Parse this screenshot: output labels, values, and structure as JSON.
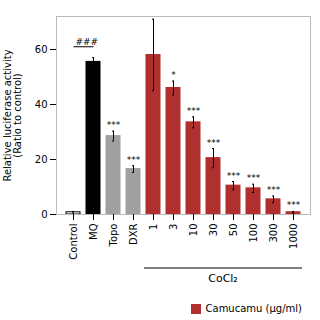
{
  "chart_data": {
    "type": "bar",
    "categories": [
      "Control",
      "MQ",
      "Topo",
      "DXR",
      "1",
      "3",
      "10",
      "30",
      "50",
      "100",
      "300",
      "1000"
    ],
    "values": [
      0.8,
      55.5,
      28.5,
      16.5,
      58.0,
      46.0,
      33.5,
      20.5,
      10.5,
      9.5,
      5.5,
      0.8
    ],
    "errors": [
      0.3,
      1.5,
      1.8,
      1.2,
      13.0,
      2.5,
      2.0,
      3.5,
      1.5,
      1.5,
      1.2,
      0.3
    ],
    "colors": [
      "white",
      "black",
      "#a0a0a0",
      "#a0a0a0",
      "#b03030",
      "#b03030",
      "#b03030",
      "#b03030",
      "#b03030",
      "#b03030",
      "#b03030",
      "#b03030"
    ],
    "edge_colors": [
      "black",
      "black",
      "#a0a0a0",
      "#a0a0a0",
      "#b03030",
      "#b03030",
      "#b03030",
      "#b03030",
      "#b03030",
      "#b03030",
      "#b03030",
      "#b03030"
    ],
    "significance": [
      null,
      null,
      "***",
      "***",
      null,
      "*",
      "***",
      "***",
      "***",
      "***",
      "***",
      "***"
    ],
    "ylabel": "Relative luciferase activity\n(Ratio to control)",
    "ylim": [
      0,
      72
    ],
    "yticks": [
      0,
      20,
      40,
      60
    ],
    "bracket": {
      "from": "Control",
      "to": "MQ",
      "y": 61.0,
      "label": "###"
    },
    "group": {
      "label": "CoCl₂",
      "categories": [
        "1",
        "3",
        "10",
        "30",
        "50",
        "100",
        "300",
        "1000"
      ]
    },
    "legend": "lower right",
    "legend_entries": [
      {
        "name": "Camucamu (μg/ml)",
        "color": "#b03030"
      }
    ]
  }
}
